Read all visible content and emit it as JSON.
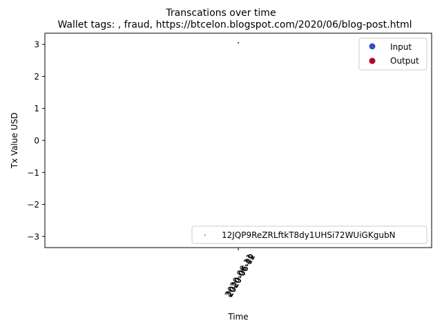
{
  "chart_data": {
    "type": "scatter",
    "title": "Transcations over time",
    "subtitle": "Wallet tags: , fraud, https://btcelon.blogspot.com/2020/06/blog-post.html",
    "xlabel": "Time",
    "ylabel": "Tx Value USD",
    "ylim": [
      -3.35,
      3.35
    ],
    "yticks": [
      3,
      2,
      1,
      0,
      -1,
      -2,
      -3
    ],
    "ytick_labels": [
      "3",
      "2",
      "1",
      "0",
      "−1",
      "−2",
      "−3"
    ],
    "xtick_labels": [
      "2020-06-09",
      "2020-06-11",
      "2020-06-12"
    ],
    "points": [
      {
        "series": "Output",
        "x": "2020-06-11",
        "y": 3.05,
        "color": "#b40426"
      }
    ],
    "legend_types": [
      {
        "label": "Input",
        "color": "#3b4cc0"
      },
      {
        "label": "Output",
        "color": "#b40426"
      }
    ],
    "legend_types_placement": "upper-right",
    "legend_wallet": {
      "label": "12JQP9ReZRLftkT8dy1UHSi72WUiGKgubN",
      "color": "#1f9e89"
    },
    "legend_wallet_placement": "lower-right"
  }
}
